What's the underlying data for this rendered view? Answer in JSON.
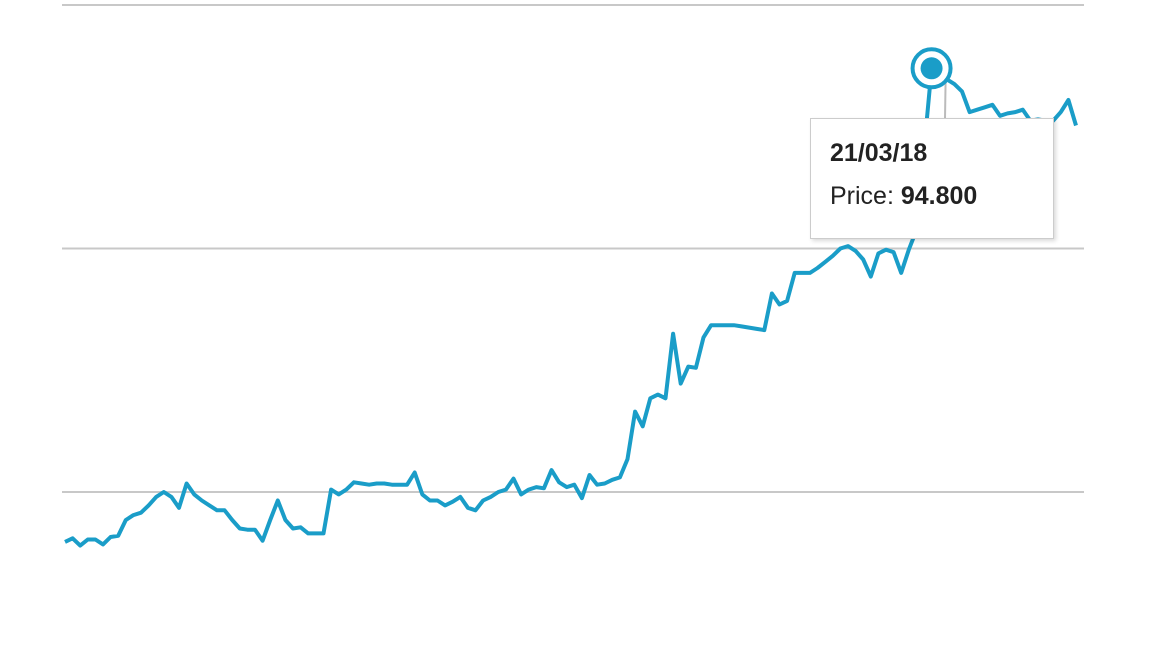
{
  "chart_data": {
    "type": "line",
    "title": "",
    "xlabel": "",
    "ylabel": "",
    "ylim": [
      50,
      100
    ],
    "gridlines": [
      60,
      80,
      100
    ],
    "grid": true,
    "legend": "none",
    "color": "#1a9dc8",
    "series": [
      {
        "values": [
          55.9,
          56.2,
          55.6,
          56.1,
          56.1,
          55.7,
          56.3,
          56.4,
          57.7,
          58.1,
          58.3,
          58.9,
          59.6,
          60.0,
          59.6,
          58.7,
          60.7,
          59.8,
          59.3,
          58.9,
          58.5,
          58.5,
          57.7,
          57.0,
          56.9,
          56.9,
          56.0,
          57.7,
          59.3,
          57.7,
          57.0,
          57.1,
          56.6,
          56.6,
          56.6,
          60.2,
          59.8,
          60.2,
          60.8,
          60.7,
          60.6,
          60.7,
          60.7,
          60.6,
          60.6,
          60.6,
          61.6,
          59.8,
          59.3,
          59.3,
          58.9,
          59.2,
          59.6,
          58.7,
          58.5,
          59.3,
          59.6,
          60.0,
          60.2,
          61.1,
          59.8,
          60.2,
          60.4,
          60.3,
          61.8,
          60.8,
          60.4,
          60.6,
          59.5,
          61.4,
          60.6,
          60.7,
          61.0,
          61.2,
          62.7,
          66.6,
          65.4,
          67.7,
          68.0,
          67.7,
          73.0,
          68.9,
          70.3,
          70.2,
          72.7,
          73.7,
          73.7,
          73.7,
          73.7,
          73.6,
          73.5,
          73.4,
          73.3,
          76.3,
          75.4,
          75.7,
          78.0,
          78.0,
          78.0,
          78.4,
          78.9,
          79.4,
          80.0,
          80.2,
          79.8,
          79.1,
          77.7,
          79.6,
          79.9,
          79.7,
          78.0,
          79.9,
          81.5,
          88.1,
          94.8,
          94.3,
          93.9,
          93.5,
          92.9,
          91.2,
          91.4,
          91.6,
          91.8,
          90.9,
          91.1,
          91.2,
          91.4,
          90.5,
          90.6,
          90.5,
          90.5,
          91.2,
          92.2,
          90.1
        ]
      }
    ],
    "tooltip": {
      "date": "21/03/18",
      "label": "Price:",
      "value": "94.800"
    }
  }
}
